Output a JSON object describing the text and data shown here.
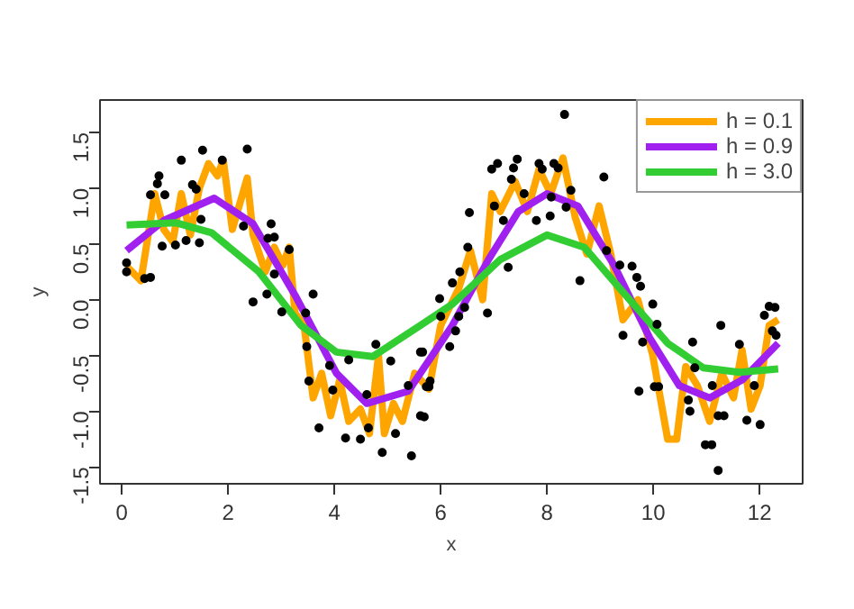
{
  "chart_data": {
    "type": "line",
    "xlabel": "x",
    "ylabel": "y",
    "xlim": [
      -0.41,
      12.81
    ],
    "ylim": [
      -1.65,
      1.79
    ],
    "xticks": [
      0,
      2,
      4,
      6,
      8,
      10,
      12
    ],
    "yticks": [
      {
        "value": -1.5,
        "label": "-1.5"
      },
      {
        "value": -1,
        "label": "-1.0"
      },
      {
        "value": -0.5,
        "label": "-0.5"
      },
      {
        "value": 0,
        "label": "0.0"
      },
      {
        "value": 0.5,
        "label": "0.5"
      },
      {
        "value": 1,
        "label": "1.0"
      },
      {
        "value": 1.5,
        "label": "1.5"
      }
    ],
    "grid": false,
    "legend": "top right",
    "series": [
      {
        "type": "scatter",
        "marker": "circle",
        "color": "#000000",
        "x": [
          0.09,
          0.09,
          0.43,
          0.54,
          0.54,
          0.67,
          0.7,
          0.81,
          0.76,
          1.01,
          1.12,
          1.21,
          1.33,
          1.4,
          1.52,
          1.46,
          1.49,
          1.89,
          2.36,
          2.29,
          2.47,
          2.75,
          2.81,
          2.87,
          2.73,
          2.87,
          3.01,
          3.15,
          3.46,
          3.6,
          3.48,
          3.52,
          3.71,
          3.91,
          3.97,
          4.21,
          4.27,
          4.49,
          4.64,
          4.61,
          4.78,
          4.9,
          5.06,
          5.15,
          5.39,
          5.45,
          5.62,
          5.62,
          5.73,
          5.66,
          5.69,
          5.78,
          5.8,
          5.98,
          6.0,
          6.17,
          6.22,
          6.28,
          6.34,
          6.36,
          6.45,
          6.51,
          6.54,
          6.88,
          6.96,
          7.01,
          7.07,
          7.18,
          7.27,
          7.33,
          7.37,
          7.44,
          7.57,
          7.8,
          7.85,
          7.91,
          8.06,
          8.08,
          8.13,
          8.21,
          8.33,
          8.36,
          8.45,
          8.62,
          9.07,
          9.12,
          9.37,
          9.6,
          9.43,
          9.69,
          9.76,
          9.8,
          9.99,
          10.07,
          9.73,
          10.02,
          10.1,
          10.66,
          10.69,
          10.74,
          10.78,
          11.11,
          10.98,
          11.1,
          11.22,
          11.27,
          11.33,
          11.22,
          11.62,
          11.76,
          11.9,
          12.01,
          12.09,
          12.18,
          12.29,
          12.24,
          12.31
        ],
        "values": [
          0.33,
          0.25,
          0.19,
          0.2,
          0.94,
          1.04,
          1.11,
          0.94,
          0.48,
          0.49,
          1.25,
          0.53,
          1.03,
          0.99,
          1.34,
          0.51,
          0.72,
          1.25,
          1.35,
          0.66,
          -0.02,
          0.55,
          0.68,
          0.56,
          0.05,
          0.23,
          -0.11,
          0.45,
          -0.12,
          0.05,
          -0.42,
          -0.73,
          -1.15,
          -0.59,
          -0.81,
          -1.24,
          -0.54,
          -1.25,
          -1.15,
          -0.85,
          -0.4,
          -1.37,
          -0.55,
          -1.2,
          -0.77,
          -1.4,
          -1.04,
          -0.47,
          -0.78,
          -0.47,
          -1.05,
          -0.78,
          -0.73,
          0.01,
          -0.15,
          -0.42,
          0.15,
          -0.28,
          -0.15,
          0.25,
          -0.07,
          0.47,
          0.78,
          -0.12,
          1.17,
          0.84,
          1.22,
          0.71,
          0.29,
          1.08,
          1.18,
          1.26,
          0.95,
          0.71,
          1.22,
          1.17,
          0.75,
          0.92,
          1.22,
          1.18,
          1.66,
          0.83,
          0.98,
          0.17,
          1.1,
          0.44,
          0.31,
          0.3,
          -0.32,
          0.2,
          0.12,
          -0.38,
          -0.04,
          -0.22,
          -0.82,
          -0.78,
          -0.78,
          -0.9,
          -1.0,
          -0.38,
          -0.61,
          -0.77,
          -1.3,
          -1.3,
          -1.04,
          -0.23,
          -1.04,
          -1.53,
          -0.4,
          -1.08,
          -0.77,
          -1.12,
          -0.14,
          -0.06,
          -0.07,
          -0.28,
          -0.32
        ]
      },
      {
        "name": "h = 0.1",
        "color": "#ffa500",
        "x": [
          0.09,
          0.36,
          0.62,
          0.79,
          0.96,
          1.12,
          1.29,
          1.46,
          1.63,
          1.8,
          1.91,
          2.08,
          2.36,
          2.47,
          2.7,
          2.87,
          3.03,
          3.15,
          3.26,
          3.43,
          3.6,
          3.76,
          3.93,
          4.1,
          4.27,
          4.49,
          4.66,
          4.83,
          4.94,
          5.11,
          5.28,
          5.51,
          5.78,
          6.0,
          6.34,
          6.56,
          6.79,
          6.96,
          7.12,
          7.4,
          7.63,
          7.85,
          8.07,
          8.3,
          8.53,
          8.75,
          8.98,
          9.2,
          9.43,
          9.71,
          9.99,
          10.27,
          10.44,
          10.61,
          10.83,
          11.06,
          11.29,
          11.51,
          11.67,
          11.84,
          12.01,
          12.18,
          12.35
        ],
        "values": [
          0.3,
          0.17,
          0.95,
          0.63,
          0.52,
          0.95,
          0.58,
          1.0,
          1.22,
          1.11,
          1.25,
          0.63,
          1.09,
          0.58,
          0.25,
          0.47,
          0.31,
          0.47,
          -0.12,
          -0.23,
          -0.88,
          -0.66,
          -1.04,
          -0.72,
          -1.09,
          -0.98,
          -1.2,
          -0.5,
          -1.2,
          -0.93,
          -1.09,
          -0.66,
          -0.8,
          -0.23,
          0.1,
          0.44,
          0.0,
          0.95,
          0.79,
          1.06,
          0.79,
          1.17,
          0.95,
          1.27,
          0.74,
          0.41,
          0.84,
          0.41,
          -0.18,
          0.0,
          -0.5,
          -1.25,
          -1.25,
          -0.6,
          -0.77,
          -1.09,
          -0.66,
          -0.88,
          -0.45,
          -0.98,
          -0.77,
          -0.23,
          -0.18
        ]
      },
      {
        "name": "h = 0.9",
        "color": "#a020f0",
        "x": [
          0.09,
          0.79,
          1.74,
          2.47,
          3.26,
          4.04,
          4.61,
          5.39,
          6.22,
          6.9,
          7.46,
          8.0,
          8.58,
          9.26,
          9.93,
          10.49,
          11.06,
          11.67,
          12.35
        ],
        "values": [
          0.44,
          0.71,
          0.91,
          0.68,
          0.04,
          -0.66,
          -0.93,
          -0.82,
          -0.23,
          0.36,
          0.79,
          0.95,
          0.84,
          0.31,
          -0.34,
          -0.77,
          -0.88,
          -0.72,
          -0.39
        ]
      },
      {
        "name": "h = 3.0",
        "color": "#32cd32",
        "x": [
          0.09,
          1.01,
          1.69,
          2.58,
          3.37,
          4.04,
          4.72,
          5.62,
          6.22,
          7.12,
          8.0,
          8.7,
          9.48,
          10.27,
          10.94,
          11.62,
          12.35
        ],
        "values": [
          0.67,
          0.69,
          0.6,
          0.25,
          -0.23,
          -0.47,
          -0.51,
          -0.23,
          -0.04,
          0.36,
          0.58,
          0.47,
          0.04,
          -0.39,
          -0.61,
          -0.65,
          -0.62
        ]
      }
    ]
  }
}
